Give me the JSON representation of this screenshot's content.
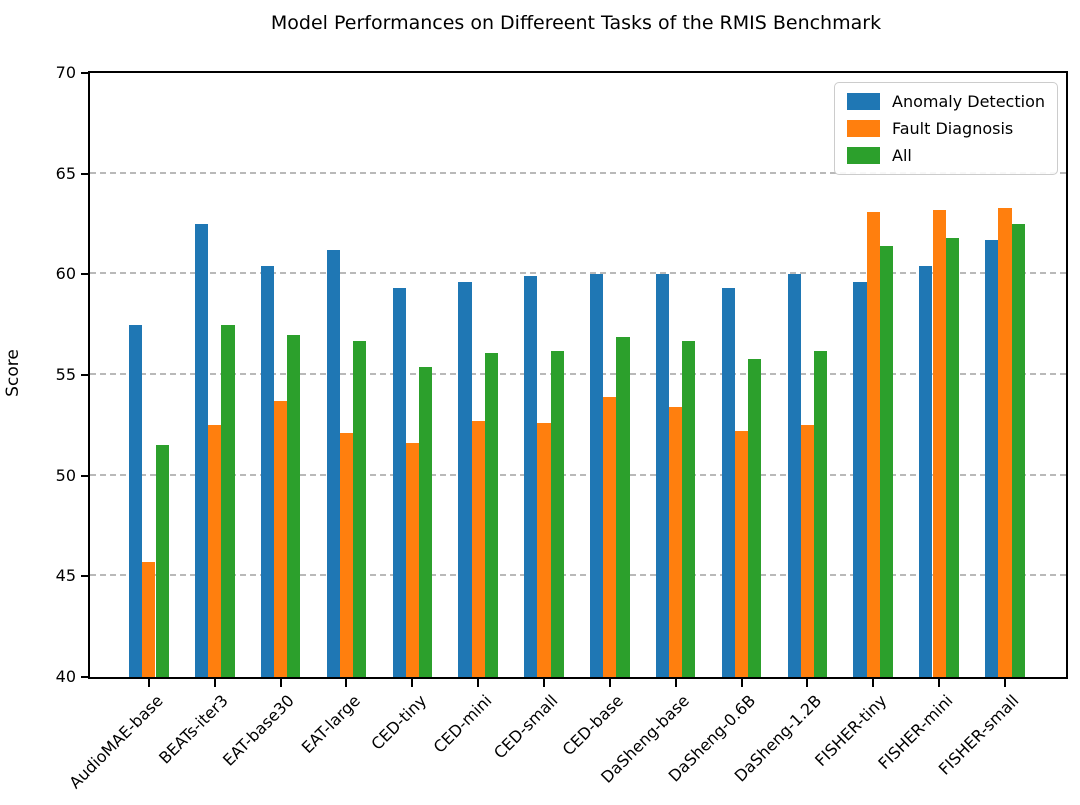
{
  "chart_data": {
    "type": "bar",
    "title": "Model Performances on Differeent Tasks of the RMIS Benchmark",
    "xlabel": "",
    "ylabel": "Score",
    "ylim": [
      40,
      70
    ],
    "yticks": [
      40,
      45,
      50,
      55,
      60,
      65,
      70
    ],
    "grid": "horizontal dashed gridlines at ticks",
    "legend_position": "upper right",
    "categories": [
      "AudioMAE-base",
      "BEATs-iter3",
      "EAT-base30",
      "EAT-large",
      "CED-tiny",
      "CED-mini",
      "CED-small",
      "CED-base",
      "DaSheng-base",
      "DaSheng-0.6B",
      "DaSheng-1.2B",
      "FISHER-tiny",
      "FISHER-mini",
      "FISHER-small"
    ],
    "series": [
      {
        "name": "Anomaly Detection",
        "color": "#1f77b4",
        "values": [
          57.5,
          62.5,
          60.4,
          61.2,
          59.3,
          59.6,
          59.9,
          60.0,
          60.0,
          59.3,
          60.0,
          59.6,
          60.4,
          61.7
        ]
      },
      {
        "name": "Fault Diagnosis",
        "color": "#ff7f0e",
        "values": [
          45.7,
          52.5,
          53.7,
          52.1,
          51.6,
          52.7,
          52.6,
          53.9,
          53.4,
          52.2,
          52.5,
          63.1,
          63.2,
          63.3
        ]
      },
      {
        "name": "All",
        "color": "#2ca02c",
        "values": [
          51.5,
          57.5,
          57.0,
          56.7,
          55.4,
          56.1,
          56.2,
          56.9,
          56.7,
          55.8,
          56.2,
          61.4,
          61.8,
          62.5
        ]
      }
    ],
    "colors": {
      "grid": "#b9b9b9",
      "spine": "#000000",
      "background": "#ffffff"
    }
  }
}
